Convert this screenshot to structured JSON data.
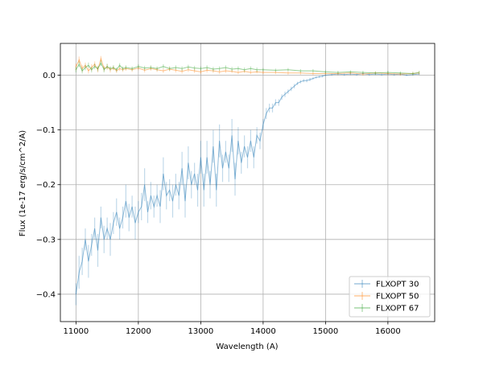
{
  "chart_data": {
    "type": "line",
    "title": "",
    "xlabel": "Wavelength (A)",
    "ylabel": "Flux (1e-17 erg/s/cm^2/A)",
    "xlim": [
      10750,
      16750
    ],
    "ylim": [
      -0.45,
      0.058
    ],
    "xticks": [
      11000,
      12000,
      13000,
      14000,
      15000,
      16000
    ],
    "yticks": [
      0.0,
      -0.1,
      -0.2,
      -0.3,
      -0.4
    ],
    "ytick_labels": [
      "0.0",
      "−0.1",
      "−0.2",
      "−0.3",
      "−0.4"
    ],
    "grid": true,
    "legend_position": "lower-right",
    "series": [
      {
        "name": "FLXOPT 30",
        "color": "#1f77b4",
        "x": [
          11000,
          11050,
          11100,
          11150,
          11200,
          11250,
          11300,
          11350,
          11400,
          11450,
          11500,
          11550,
          11600,
          11650,
          11700,
          11750,
          11800,
          11850,
          11900,
          11950,
          12000,
          12050,
          12100,
          12150,
          12200,
          12250,
          12300,
          12350,
          12400,
          12450,
          12500,
          12550,
          12600,
          12650,
          12700,
          12750,
          12800,
          12850,
          12900,
          12950,
          13000,
          13050,
          13100,
          13150,
          13200,
          13250,
          13300,
          13350,
          13400,
          13450,
          13500,
          13550,
          13600,
          13650,
          13700,
          13750,
          13800,
          13850,
          13900,
          13950,
          14000,
          14050,
          14100,
          14150,
          14200,
          14250,
          14300,
          14350,
          14400,
          14450,
          14500,
          14550,
          14600,
          14650,
          14700,
          14750,
          14800,
          14850,
          14900,
          14950,
          15000,
          15100,
          15200,
          15300,
          15400,
          15500,
          15600,
          15700,
          15800,
          15900,
          16000,
          16100,
          16200,
          16300,
          16400,
          16500
        ],
        "y": [
          -0.4,
          -0.36,
          -0.34,
          -0.3,
          -0.34,
          -0.31,
          -0.28,
          -0.32,
          -0.26,
          -0.3,
          -0.28,
          -0.3,
          -0.27,
          -0.25,
          -0.28,
          -0.26,
          -0.23,
          -0.26,
          -0.24,
          -0.27,
          -0.25,
          -0.24,
          -0.2,
          -0.25,
          -0.22,
          -0.24,
          -0.22,
          -0.24,
          -0.18,
          -0.22,
          -0.21,
          -0.23,
          -0.2,
          -0.22,
          -0.17,
          -0.23,
          -0.16,
          -0.2,
          -0.18,
          -0.21,
          -0.15,
          -0.21,
          -0.15,
          -0.2,
          -0.13,
          -0.21,
          -0.12,
          -0.17,
          -0.14,
          -0.17,
          -0.11,
          -0.19,
          -0.12,
          -0.16,
          -0.13,
          -0.15,
          -0.12,
          -0.15,
          -0.11,
          -0.12,
          -0.09,
          -0.07,
          -0.06,
          -0.06,
          -0.05,
          -0.05,
          -0.04,
          -0.035,
          -0.03,
          -0.025,
          -0.02,
          -0.015,
          -0.012,
          -0.01,
          -0.01,
          -0.008,
          -0.006,
          -0.004,
          -0.003,
          -0.002,
          0.0,
          0.001,
          0.002,
          0.001,
          0.002,
          0.001,
          0.003,
          0.001,
          0.002,
          0.001,
          0.002,
          0.001,
          0.002,
          0.0,
          0.001,
          0.002
        ],
        "errors": [
          0.02,
          0.03,
          0.025,
          0.02,
          0.03,
          0.02,
          0.02,
          0.03,
          0.02,
          0.025,
          0.02,
          0.03,
          0.02,
          0.025,
          0.02,
          0.02,
          0.03,
          0.025,
          0.02,
          0.03,
          0.02,
          0.025,
          0.03,
          0.02,
          0.025,
          0.02,
          0.02,
          0.03,
          0.03,
          0.025,
          0.02,
          0.03,
          0.02,
          0.025,
          0.03,
          0.03,
          0.03,
          0.025,
          0.02,
          0.03,
          0.03,
          0.03,
          0.03,
          0.025,
          0.03,
          0.03,
          0.03,
          0.025,
          0.02,
          0.025,
          0.03,
          0.03,
          0.025,
          0.02,
          0.02,
          0.02,
          0.02,
          0.02,
          0.015,
          0.015,
          0.01,
          0.01,
          0.008,
          0.008,
          0.006,
          0.006,
          0.005,
          0.005,
          0.004,
          0.004,
          0.004,
          0.003,
          0.003,
          0.003,
          0.003,
          0.003,
          0.002,
          0.002,
          0.002,
          0.002,
          0.002,
          0.002,
          0.002,
          0.002,
          0.002,
          0.002,
          0.002,
          0.002,
          0.002,
          0.002,
          0.002,
          0.002,
          0.002,
          0.002,
          0.002,
          0.002
        ]
      },
      {
        "name": "FLXOPT 50",
        "color": "#ff7f0e",
        "x": [
          11000,
          11050,
          11100,
          11150,
          11200,
          11250,
          11300,
          11350,
          11400,
          11450,
          11500,
          11550,
          11600,
          11650,
          11700,
          11750,
          11800,
          11900,
          12000,
          12100,
          12200,
          12300,
          12400,
          12500,
          12600,
          12700,
          12800,
          12900,
          13000,
          13100,
          13200,
          13300,
          13400,
          13500,
          13600,
          13700,
          13800,
          13900,
          14000,
          14200,
          14400,
          14600,
          14800,
          15000,
          15200,
          15400,
          15600,
          15800,
          16000,
          16200,
          16400,
          16500
        ],
        "y": [
          0.015,
          0.028,
          0.012,
          0.018,
          0.008,
          0.014,
          0.02,
          0.01,
          0.03,
          0.012,
          0.015,
          0.01,
          0.013,
          0.008,
          0.012,
          0.01,
          0.012,
          0.01,
          0.013,
          0.009,
          0.012,
          0.01,
          0.008,
          0.011,
          0.009,
          0.007,
          0.01,
          0.008,
          0.006,
          0.009,
          0.008,
          0.006,
          0.008,
          0.007,
          0.005,
          0.007,
          0.005,
          0.006,
          0.005,
          0.005,
          0.004,
          0.004,
          0.003,
          0.003,
          0.003,
          0.004,
          0.002,
          0.004,
          0.003,
          0.002,
          0.003,
          0.004
        ],
        "errors": [
          0.006,
          0.006,
          0.006,
          0.005,
          0.005,
          0.006,
          0.005,
          0.005,
          0.005,
          0.005,
          0.005,
          0.005,
          0.004,
          0.004,
          0.004,
          0.004,
          0.004,
          0.004,
          0.004,
          0.004,
          0.004,
          0.004,
          0.004,
          0.004,
          0.004,
          0.004,
          0.004,
          0.004,
          0.004,
          0.004,
          0.004,
          0.004,
          0.004,
          0.003,
          0.003,
          0.003,
          0.003,
          0.003,
          0.003,
          0.003,
          0.003,
          0.003,
          0.003,
          0.003,
          0.003,
          0.003,
          0.003,
          0.003,
          0.003,
          0.003,
          0.003,
          0.003
        ]
      },
      {
        "name": "FLXOPT 67",
        "color": "#2ca02c",
        "x": [
          11000,
          11050,
          11100,
          11150,
          11200,
          11250,
          11300,
          11350,
          11400,
          11450,
          11500,
          11550,
          11600,
          11650,
          11700,
          11750,
          11800,
          11900,
          12000,
          12100,
          12200,
          12300,
          12400,
          12500,
          12600,
          12700,
          12800,
          12900,
          13000,
          13100,
          13200,
          13300,
          13400,
          13500,
          13600,
          13700,
          13800,
          13900,
          14000,
          14200,
          14400,
          14600,
          14800,
          15000,
          15200,
          15400,
          15600,
          15800,
          16000,
          16200,
          16400,
          16500
        ],
        "y": [
          0.01,
          0.02,
          0.008,
          0.014,
          0.018,
          0.01,
          0.016,
          0.012,
          0.022,
          0.01,
          0.016,
          0.012,
          0.014,
          0.01,
          0.018,
          0.012,
          0.014,
          0.012,
          0.016,
          0.013,
          0.014,
          0.012,
          0.016,
          0.012,
          0.014,
          0.012,
          0.015,
          0.013,
          0.012,
          0.014,
          0.011,
          0.012,
          0.014,
          0.011,
          0.012,
          0.01,
          0.012,
          0.01,
          0.01,
          0.009,
          0.01,
          0.008,
          0.008,
          0.006,
          0.005,
          0.006,
          0.005,
          0.004,
          0.005,
          0.004,
          0.003,
          0.005
        ],
        "errors": [
          0.005,
          0.005,
          0.005,
          0.005,
          0.005,
          0.005,
          0.005,
          0.005,
          0.005,
          0.005,
          0.005,
          0.004,
          0.004,
          0.004,
          0.004,
          0.004,
          0.004,
          0.004,
          0.004,
          0.004,
          0.004,
          0.004,
          0.004,
          0.004,
          0.004,
          0.004,
          0.004,
          0.004,
          0.004,
          0.004,
          0.004,
          0.004,
          0.004,
          0.004,
          0.004,
          0.004,
          0.004,
          0.004,
          0.003,
          0.003,
          0.003,
          0.003,
          0.003,
          0.003,
          0.003,
          0.003,
          0.003,
          0.003,
          0.003,
          0.003,
          0.003,
          0.003
        ]
      }
    ]
  }
}
